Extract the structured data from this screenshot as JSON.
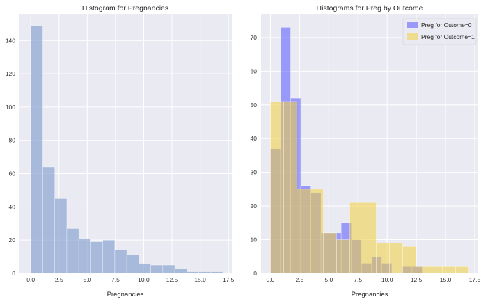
{
  "chart_data": [
    {
      "type": "bar",
      "title": "Histogram for Pregnancies",
      "xlabel": "Pregnancies",
      "ylabel": "",
      "grid": true,
      "xlim": [
        -1,
        17.8
      ],
      "ylim": [
        0,
        156
      ],
      "xticks": [
        "0.0",
        "2.5",
        "5.0",
        "7.5",
        "10.0",
        "12.5",
        "15.0",
        "17.5"
      ],
      "yticks": [
        "0",
        "20",
        "40",
        "60",
        "80",
        "100",
        "120",
        "140"
      ],
      "series": [
        {
          "color": "#8fa8d1",
          "bins": [
            {
              "x0": 0.0,
              "x1": 1.0625,
              "count": 149
            },
            {
              "x0": 1.0625,
              "x1": 2.125,
              "count": 64
            },
            {
              "x0": 2.125,
              "x1": 3.1875,
              "count": 45
            },
            {
              "x0": 3.1875,
              "x1": 4.25,
              "count": 27
            },
            {
              "x0": 4.25,
              "x1": 5.3125,
              "count": 21
            },
            {
              "x0": 5.3125,
              "x1": 6.375,
              "count": 19
            },
            {
              "x0": 6.375,
              "x1": 7.4375,
              "count": 20
            },
            {
              "x0": 7.4375,
              "x1": 8.5,
              "count": 14
            },
            {
              "x0": 8.5,
              "x1": 9.5625,
              "count": 11
            },
            {
              "x0": 9.5625,
              "x1": 10.625,
              "count": 6
            },
            {
              "x0": 10.625,
              "x1": 11.6875,
              "count": 5
            },
            {
              "x0": 11.6875,
              "x1": 12.75,
              "count": 5
            },
            {
              "x0": 12.75,
              "x1": 13.8125,
              "count": 3
            },
            {
              "x0": 13.8125,
              "x1": 14.875,
              "count": 1
            },
            {
              "x0": 14.875,
              "x1": 15.9375,
              "count": 1
            },
            {
              "x0": 15.9375,
              "x1": 17.0,
              "count": 1
            }
          ]
        }
      ]
    },
    {
      "type": "bar",
      "title": "Histograms for Preg by Outcome",
      "xlabel": "Pregnancies",
      "ylabel": "",
      "grid": true,
      "legend": "top-right",
      "xlim": [
        -0.8,
        17.8
      ],
      "ylim": [
        0,
        77
      ],
      "xticks": [
        "0.0",
        "2.5",
        "5.0",
        "7.5",
        "10.0",
        "12.5",
        "15.0",
        "17.5"
      ],
      "yticks": [
        "0",
        "10",
        "20",
        "30",
        "40",
        "50",
        "60",
        "70"
      ],
      "series": [
        {
          "name": "Preg for Outome=0",
          "color": "#5555ff",
          "bins": [
            {
              "x0": 0.0,
              "x1": 0.867,
              "count": 37
            },
            {
              "x0": 0.867,
              "x1": 1.733,
              "count": 73
            },
            {
              "x0": 1.733,
              "x1": 2.6,
              "count": 52
            },
            {
              "x0": 2.6,
              "x1": 3.467,
              "count": 26
            },
            {
              "x0": 3.467,
              "x1": 4.333,
              "count": 24
            },
            {
              "x0": 4.333,
              "x1": 5.2,
              "count": 12
            },
            {
              "x0": 5.2,
              "x1": 6.067,
              "count": 12
            },
            {
              "x0": 6.067,
              "x1": 6.933,
              "count": 15
            },
            {
              "x0": 6.933,
              "x1": 7.8,
              "count": 10
            },
            {
              "x0": 7.8,
              "x1": 8.667,
              "count": 3
            },
            {
              "x0": 8.667,
              "x1": 9.533,
              "count": 5
            },
            {
              "x0": 9.533,
              "x1": 10.4,
              "count": 3
            },
            {
              "x0": 10.4,
              "x1": 11.267,
              "count": 0
            },
            {
              "x0": 11.267,
              "x1": 12.133,
              "count": 2
            },
            {
              "x0": 12.133,
              "x1": 13.0,
              "count": 2
            }
          ]
        },
        {
          "name": "Preg for Outcome=1",
          "color": "#f0d040",
          "bins": [
            {
              "x0": 0.0,
              "x1": 1.133,
              "count": 51
            },
            {
              "x0": 1.133,
              "x1": 2.267,
              "count": 51
            },
            {
              "x0": 2.267,
              "x1": 3.4,
              "count": 25
            },
            {
              "x0": 3.4,
              "x1": 4.533,
              "count": 25
            },
            {
              "x0": 4.533,
              "x1": 5.667,
              "count": 12
            },
            {
              "x0": 5.667,
              "x1": 6.8,
              "count": 10
            },
            {
              "x0": 6.8,
              "x1": 7.933,
              "count": 21
            },
            {
              "x0": 7.933,
              "x1": 9.067,
              "count": 21
            },
            {
              "x0": 9.067,
              "x1": 10.2,
              "count": 9
            },
            {
              "x0": 10.2,
              "x1": 11.333,
              "count": 9
            },
            {
              "x0": 11.333,
              "x1": 12.467,
              "count": 8
            },
            {
              "x0": 12.467,
              "x1": 13.6,
              "count": 2
            },
            {
              "x0": 13.6,
              "x1": 14.733,
              "count": 2
            },
            {
              "x0": 14.733,
              "x1": 15.867,
              "count": 2
            },
            {
              "x0": 15.867,
              "x1": 17.0,
              "count": 2
            }
          ]
        }
      ]
    }
  ]
}
